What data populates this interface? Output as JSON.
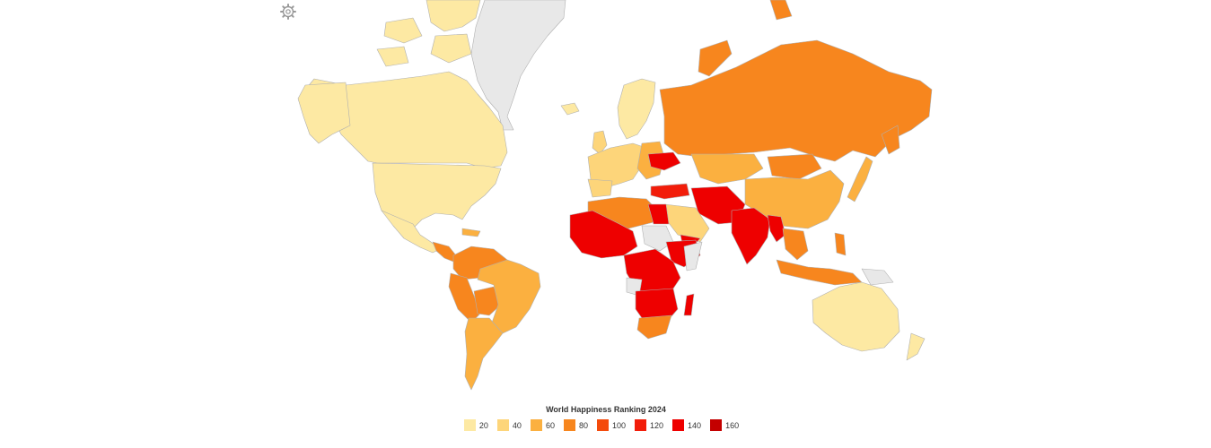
{
  "legend": {
    "title": "World Happiness Ranking 2024",
    "items": [
      {
        "label": "20",
        "color": "#fde9a3"
      },
      {
        "label": "40",
        "color": "#fdd57a"
      },
      {
        "label": "60",
        "color": "#fbb040"
      },
      {
        "label": "80",
        "color": "#f7861e"
      },
      {
        "label": "100",
        "color": "#f44b0c"
      },
      {
        "label": "120",
        "color": "#f21d0a"
      },
      {
        "label": "140",
        "color": "#ee0000"
      },
      {
        "label": "160",
        "color": "#c40000"
      }
    ]
  },
  "colors": {
    "no_data": "#e8e8e8",
    "border": "#c8c8c8",
    "background": "#ffffff"
  },
  "icons": {
    "settings": "gear-icon"
  }
}
